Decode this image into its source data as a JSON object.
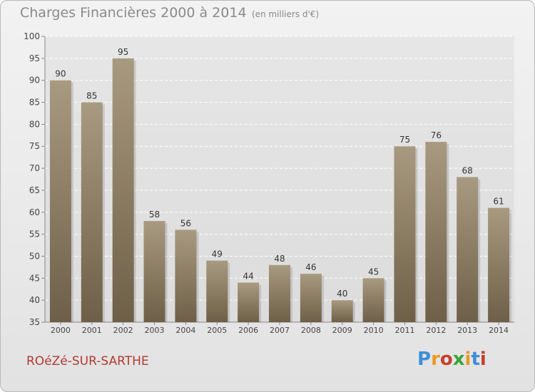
{
  "header": {
    "title": "Charges Financières 2000 à 2014",
    "unit": "(en milliers d'€)"
  },
  "footer": {
    "place": "ROéZé-SUR-SARTHE",
    "logo_text": "Proxiti"
  },
  "colors": {
    "bar_top": "#a89a80",
    "bar_bottom": "#6e5f48",
    "place": "#b03a30",
    "logo": [
      "#3d8fd6",
      "#e89a25",
      "#c2412e",
      "#3aa33a",
      "#e89a25",
      "#3d8fd6",
      "#c2412e"
    ]
  },
  "chart_data": {
    "type": "bar",
    "title": "Charges Financières 2000 à 2014",
    "subtitle": "(en milliers d'€)",
    "categories": [
      "2000",
      "2001",
      "2002",
      "2003",
      "2004",
      "2005",
      "2006",
      "2007",
      "2008",
      "2009",
      "2010",
      "2011",
      "2012",
      "2013",
      "2014"
    ],
    "values": [
      90,
      85,
      95,
      58,
      56,
      49,
      44,
      48,
      46,
      40,
      45,
      75,
      76,
      68,
      61
    ],
    "ylim": [
      35,
      100
    ],
    "yticks": [
      35,
      40,
      45,
      50,
      55,
      60,
      65,
      70,
      75,
      80,
      85,
      90,
      95,
      100
    ],
    "grid": true
  }
}
